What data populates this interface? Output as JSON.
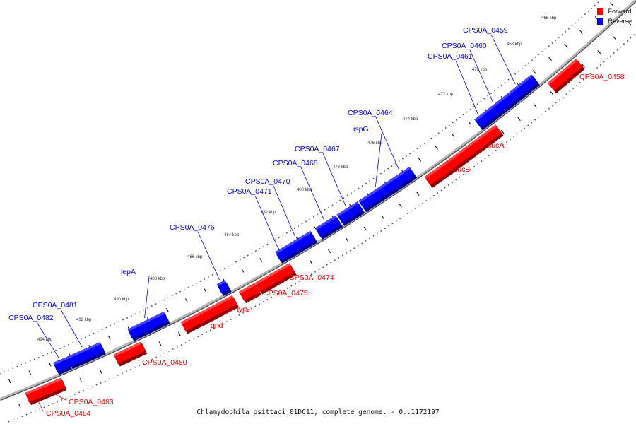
{
  "caption": "Chlamydophila psittaci 01DC11, complete genome. - 0..1172197",
  "legend": [
    {
      "label": "Forward",
      "color": "#ff0000"
    },
    {
      "label": "Reverse",
      "color": "#0000ff"
    }
  ],
  "colors": {
    "forward": "#ff0000",
    "reverse": "#0000ff",
    "backbone": "#9a9a9a"
  },
  "kbp_labels": [
    "466 kbp",
    "468 kbp",
    "470 kbp",
    "472 kbp",
    "474 kbp",
    "476 kbp",
    "478 kbp",
    "480 kbp",
    "482 kbp",
    "484 kbp",
    "486 kbp",
    "488 kbp",
    "490 kbp",
    "492 kbp",
    "494 kbp"
  ],
  "genes": [
    {
      "label": "CPS0A_0458",
      "strand": "forward"
    },
    {
      "label": "CPS0A_0459",
      "strand": "reverse"
    },
    {
      "label": "CPS0A_0460",
      "strand": "reverse"
    },
    {
      "label": "CPS0A_0461",
      "strand": "reverse"
    },
    {
      "label": "sucA",
      "strand": "forward"
    },
    {
      "label": "sucB",
      "strand": "forward"
    },
    {
      "label": "CPS0A_0464",
      "strand": "reverse"
    },
    {
      "label": "ispG",
      "strand": "reverse"
    },
    {
      "label": "CPS0A_0467",
      "strand": "reverse"
    },
    {
      "label": "CPS0A_0468",
      "strand": "reverse"
    },
    {
      "label": "CPS0A_0470",
      "strand": "reverse"
    },
    {
      "label": "CPS0A_0471",
      "strand": "reverse"
    },
    {
      "label": "CPS0A_0474",
      "strand": "forward"
    },
    {
      "label": "CPS0A_0475",
      "strand": "forward"
    },
    {
      "label": "CPS0A_0476",
      "strand": "reverse"
    },
    {
      "label": "tyrS",
      "strand": "forward"
    },
    {
      "label": "gnd",
      "strand": "forward"
    },
    {
      "label": "lepA",
      "strand": "reverse"
    },
    {
      "label": "CPS0A_0480",
      "strand": "forward"
    },
    {
      "label": "CPS0A_0481",
      "strand": "reverse"
    },
    {
      "label": "CPS0A_0482",
      "strand": "reverse"
    },
    {
      "label": "CPS0A_0483",
      "strand": "forward"
    },
    {
      "label": "CPS0A_0484",
      "strand": "forward"
    }
  ]
}
